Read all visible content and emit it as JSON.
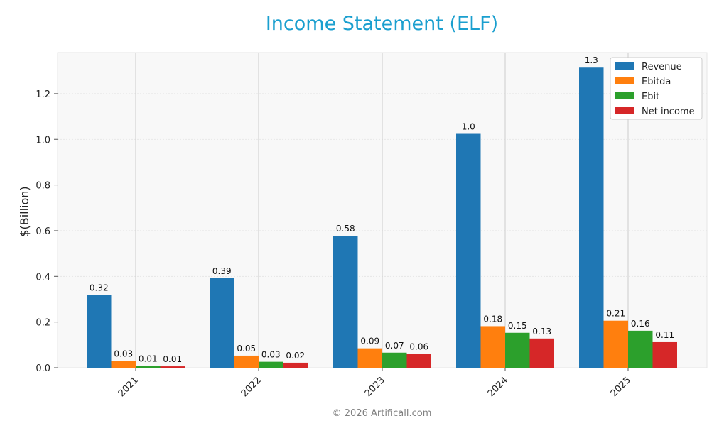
{
  "chart_data": {
    "type": "bar",
    "title": "Income Statement (ELF)",
    "xlabel": "",
    "ylabel": "$(Billion)",
    "categories": [
      "2021",
      "2022",
      "2023",
      "2024",
      "2025"
    ],
    "ylim": [
      0,
      1.35
    ],
    "yticks": [
      "0.0",
      "0.2",
      "0.4",
      "0.6",
      "0.8",
      "1.0",
      "1.2"
    ],
    "grid": true,
    "legend_position": "top-right",
    "series": [
      {
        "name": "Revenue",
        "color": "#1f77b4",
        "values": [
          0.318,
          0.392,
          0.578,
          1.024,
          1.314
        ],
        "labels": [
          "0.32",
          "0.39",
          "0.58",
          "1.0",
          "1.3"
        ]
      },
      {
        "name": "Ebitda",
        "color": "#ff7f0e",
        "values": [
          0.03,
          0.053,
          0.085,
          0.182,
          0.206
        ],
        "labels": [
          "0.03",
          "0.05",
          "0.09",
          "0.18",
          "0.21"
        ]
      },
      {
        "name": "Ebit",
        "color": "#2ca02c",
        "values": [
          0.007,
          0.026,
          0.066,
          0.153,
          0.162
        ],
        "labels": [
          "0.01",
          "0.03",
          "0.07",
          "0.15",
          "0.16"
        ]
      },
      {
        "name": "Net income",
        "color": "#d62728",
        "values": [
          0.006,
          0.022,
          0.061,
          0.128,
          0.112
        ],
        "labels": [
          "0.01",
          "0.02",
          "0.06",
          "0.13",
          "0.11"
        ]
      }
    ]
  },
  "footer": "© 2026 Artificall.com"
}
